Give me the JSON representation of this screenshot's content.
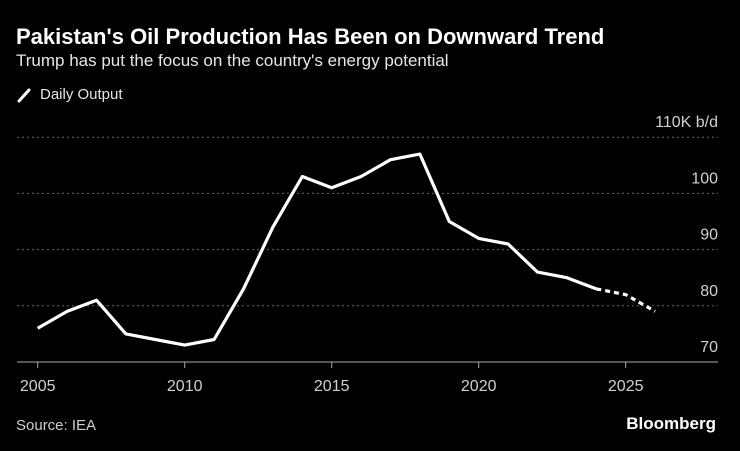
{
  "chart_data": {
    "type": "line",
    "title": "Pakistan's Oil Production Has Been on Downward Trend",
    "subtitle": "Trump has put the focus on the country's energy potential",
    "legend": {
      "entries": [
        "Daily Output"
      ],
      "placement": "top-left"
    },
    "x": [
      2005,
      2006,
      2007,
      2008,
      2009,
      2010,
      2011,
      2012,
      2013,
      2014,
      2015,
      2016,
      2017,
      2018,
      2019,
      2020,
      2021,
      2022,
      2023,
      2024,
      2025,
      2026
    ],
    "series": [
      {
        "name": "Daily Output",
        "values": [
          76,
          79,
          81,
          75,
          74,
          73,
          74,
          83,
          94,
          103,
          101,
          103,
          106,
          107,
          95,
          92,
          91,
          86,
          85,
          83,
          82,
          79
        ],
        "projected_from": 2024,
        "color": "#ffffff"
      }
    ],
    "xlim": [
      2004,
      2028
    ],
    "ylim": [
      70,
      110
    ],
    "x_ticks": [
      "2005",
      "2010",
      "2015",
      "2020",
      "2025"
    ],
    "y_ticks": [
      "70",
      "80",
      "90",
      "100",
      "110K b/d"
    ],
    "y_tick_values": [
      70,
      80,
      90,
      100,
      110
    ],
    "x_tick_values": [
      2005,
      2010,
      2015,
      2020,
      2025
    ],
    "grid": true,
    "source": "Source: IEA",
    "brand": "Bloomberg"
  }
}
